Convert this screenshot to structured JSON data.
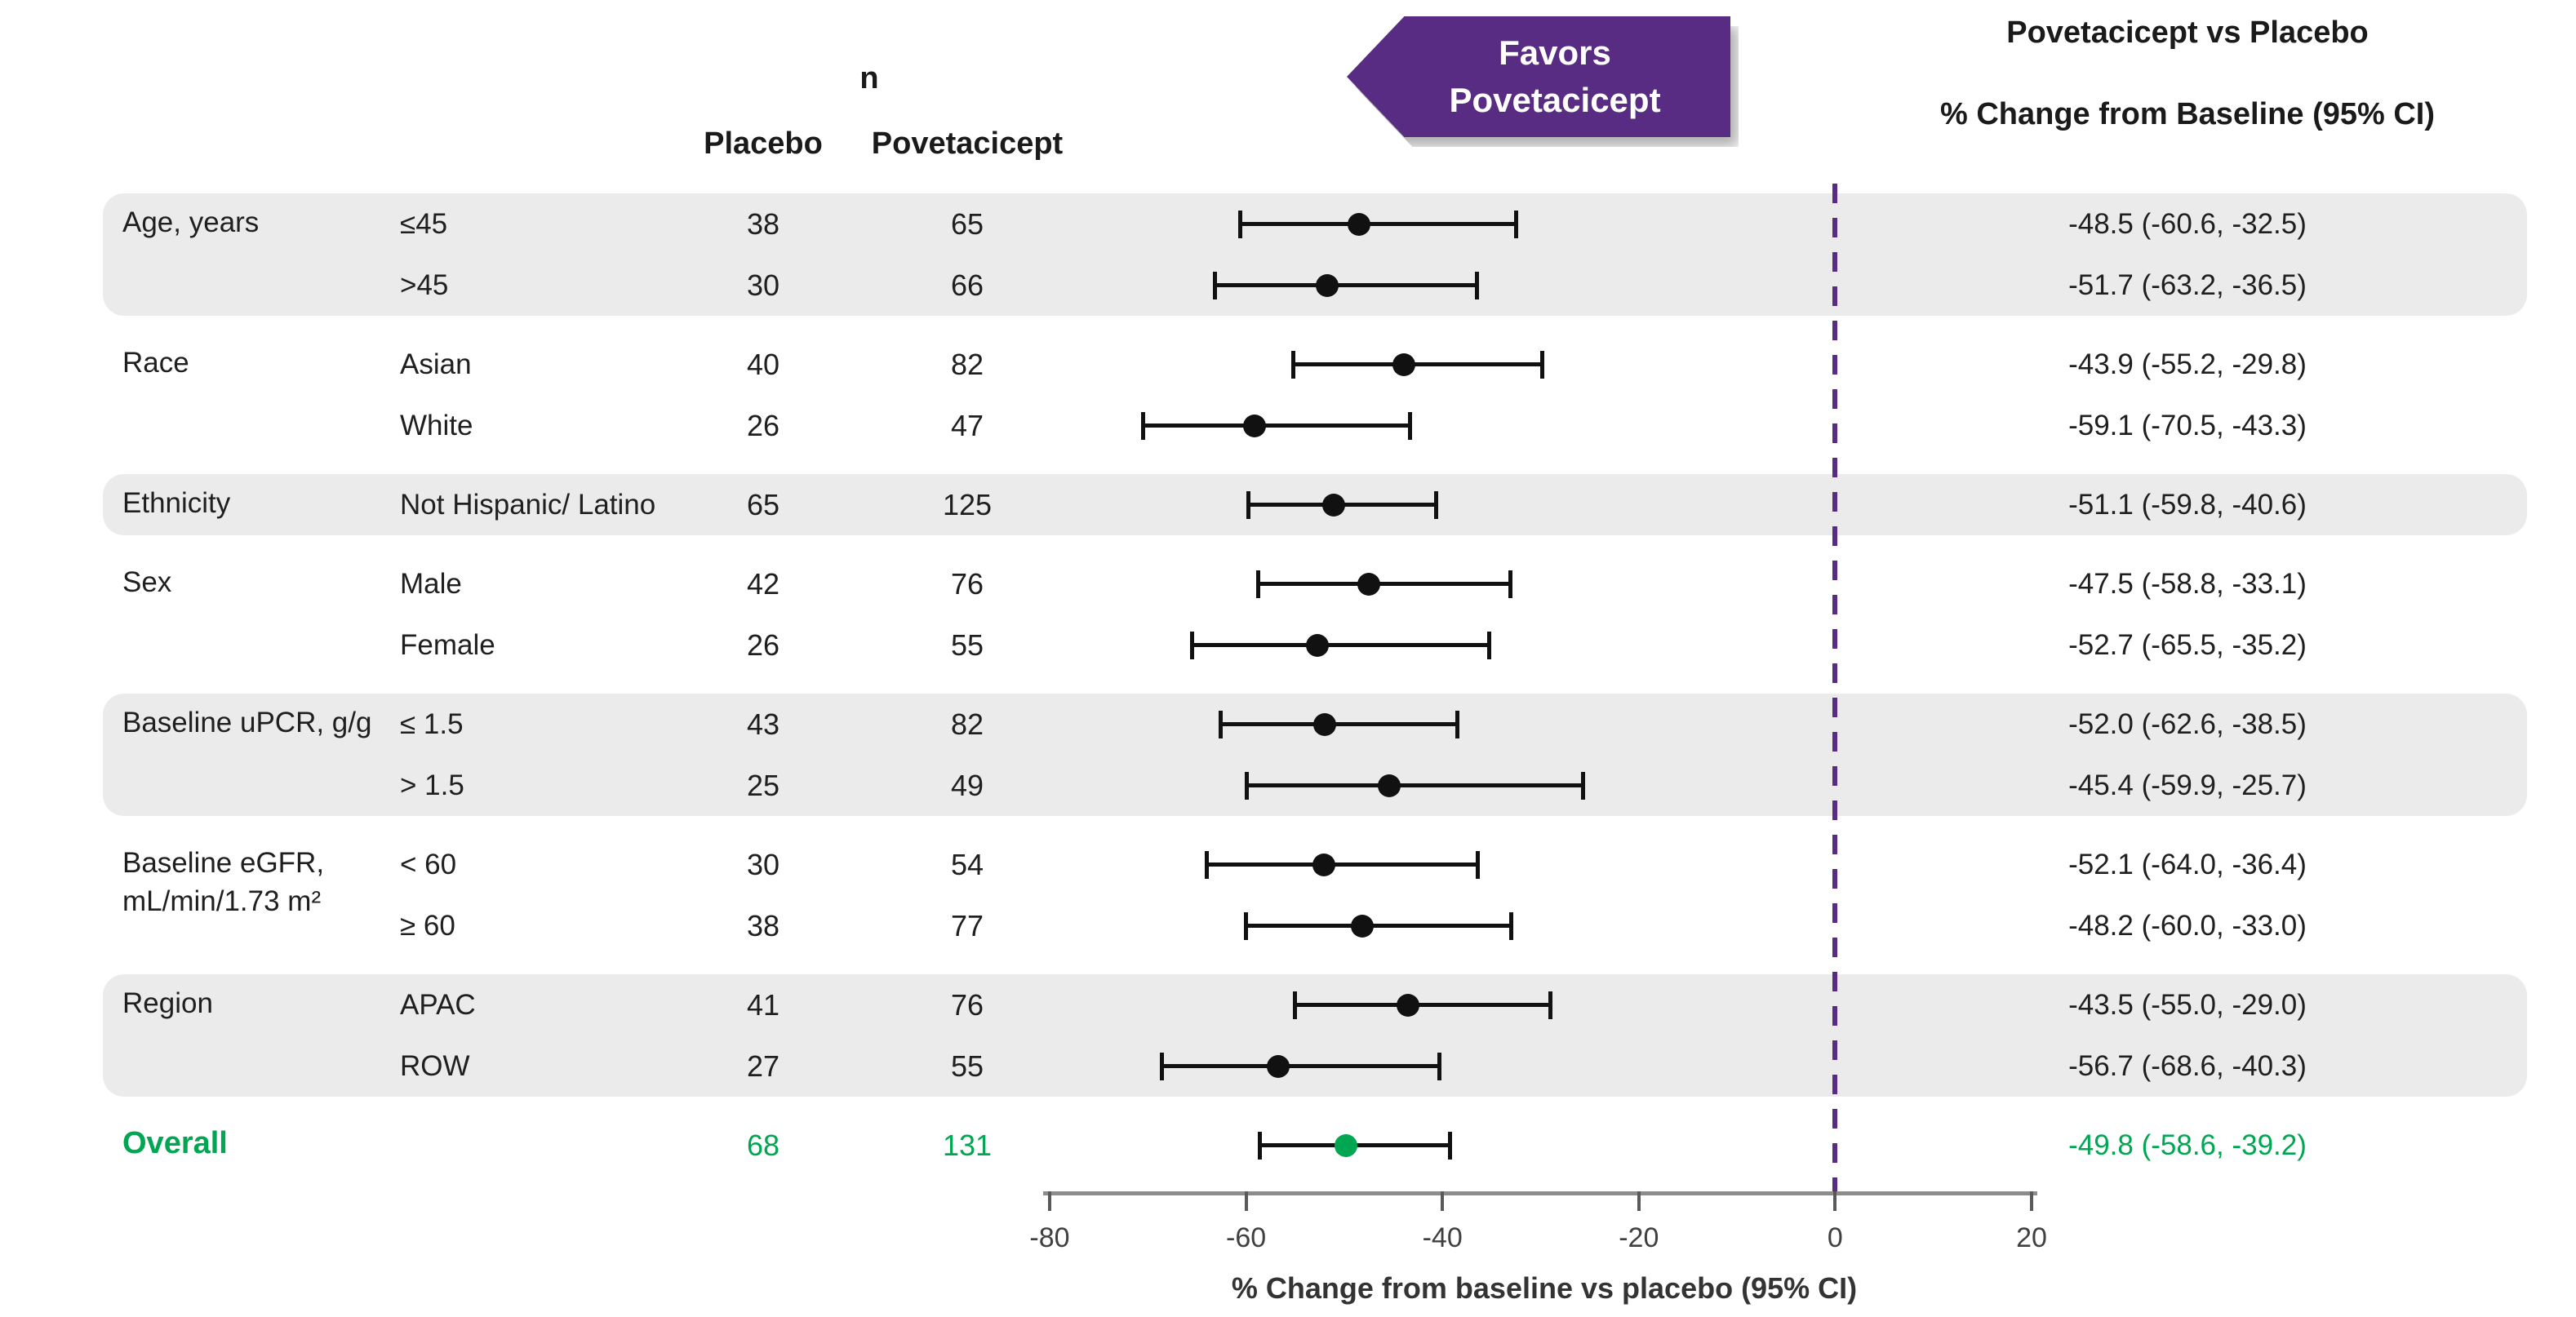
{
  "header": {
    "n_label": "n",
    "placebo_label": "Placebo",
    "povetacicept_label": "Povetacicept",
    "favors_line1": "Favors",
    "favors_line2": "Povetacicept",
    "right_title_line1": "Povetacicept vs Placebo",
    "right_title_line2": "% Change from Baseline (95% CI)"
  },
  "colors": {
    "accent_purple": "#582C83",
    "overall_green": "#00A651",
    "band_gray": "#EBEBEB",
    "marker_black": "#111111"
  },
  "axis": {
    "label": "% Change from baseline vs placebo (95% CI)",
    "min": -80,
    "max": 20,
    "ticks": [
      -80,
      -60,
      -40,
      -20,
      0,
      20
    ],
    "reference_line_x": 0
  },
  "groups": [
    {
      "category": "Age, years",
      "shaded": true,
      "overall": false,
      "rows": [
        {
          "subgroup": "≤45",
          "placebo_n": "38",
          "povetacicept_n": "65",
          "estimate": -48.5,
          "lower": -60.6,
          "upper": -32.5,
          "ci_text": "-48.5 (-60.6, -32.5)"
        },
        {
          "subgroup": ">45",
          "placebo_n": "30",
          "povetacicept_n": "66",
          "estimate": -51.7,
          "lower": -63.2,
          "upper": -36.5,
          "ci_text": "-51.7 (-63.2, -36.5)"
        }
      ]
    },
    {
      "category": "Race",
      "shaded": false,
      "overall": false,
      "rows": [
        {
          "subgroup": "Asian",
          "placebo_n": "40",
          "povetacicept_n": "82",
          "estimate": -43.9,
          "lower": -55.2,
          "upper": -29.8,
          "ci_text": "-43.9 (-55.2, -29.8)"
        },
        {
          "subgroup": "White",
          "placebo_n": "26",
          "povetacicept_n": "47",
          "estimate": -59.1,
          "lower": -70.5,
          "upper": -43.3,
          "ci_text": "-59.1 (-70.5, -43.3)"
        }
      ]
    },
    {
      "category": "Ethnicity",
      "shaded": true,
      "overall": false,
      "rows": [
        {
          "subgroup": "Not Hispanic/ Latino",
          "placebo_n": "65",
          "povetacicept_n": "125",
          "estimate": -51.1,
          "lower": -59.8,
          "upper": -40.6,
          "ci_text": "-51.1 (-59.8, -40.6)"
        }
      ]
    },
    {
      "category": "Sex",
      "shaded": false,
      "overall": false,
      "rows": [
        {
          "subgroup": "Male",
          "placebo_n": "42",
          "povetacicept_n": "76",
          "estimate": -47.5,
          "lower": -58.8,
          "upper": -33.1,
          "ci_text": "-47.5 (-58.8, -33.1)"
        },
        {
          "subgroup": "Female",
          "placebo_n": "26",
          "povetacicept_n": "55",
          "estimate": -52.7,
          "lower": -65.5,
          "upper": -35.2,
          "ci_text": "-52.7 (-65.5, -35.2)"
        }
      ]
    },
    {
      "category": "Baseline uPCR, g/g",
      "shaded": true,
      "overall": false,
      "rows": [
        {
          "subgroup": "≤ 1.5",
          "placebo_n": "43",
          "povetacicept_n": "82",
          "estimate": -52.0,
          "lower": -62.6,
          "upper": -38.5,
          "ci_text": "-52.0 (-62.6, -38.5)"
        },
        {
          "subgroup": "> 1.5",
          "placebo_n": "25",
          "povetacicept_n": "49",
          "estimate": -45.4,
          "lower": -59.9,
          "upper": -25.7,
          "ci_text": "-45.4 (-59.9, -25.7)"
        }
      ]
    },
    {
      "category": "Baseline eGFR, mL/min/1.73 m²",
      "shaded": false,
      "overall": false,
      "rows": [
        {
          "subgroup": "< 60",
          "placebo_n": "30",
          "povetacicept_n": "54",
          "estimate": -52.1,
          "lower": -64.0,
          "upper": -36.4,
          "ci_text": "-52.1 (-64.0, -36.4)"
        },
        {
          "subgroup": "≥ 60",
          "placebo_n": "38",
          "povetacicept_n": "77",
          "estimate": -48.2,
          "lower": -60.0,
          "upper": -33.0,
          "ci_text": "-48.2 (-60.0, -33.0)"
        }
      ]
    },
    {
      "category": "Region",
      "shaded": true,
      "overall": false,
      "rows": [
        {
          "subgroup": "APAC",
          "placebo_n": "41",
          "povetacicept_n": "76",
          "estimate": -43.5,
          "lower": -55.0,
          "upper": -29.0,
          "ci_text": "-43.5 (-55.0, -29.0)"
        },
        {
          "subgroup": "ROW",
          "placebo_n": "27",
          "povetacicept_n": "55",
          "estimate": -56.7,
          "lower": -68.6,
          "upper": -40.3,
          "ci_text": "-56.7 (-68.6, -40.3)"
        }
      ]
    },
    {
      "category": "Overall",
      "shaded": false,
      "overall": true,
      "rows": [
        {
          "subgroup": "",
          "placebo_n": "68",
          "povetacicept_n": "131",
          "estimate": -49.8,
          "lower": -58.6,
          "upper": -39.2,
          "ci_text": "-49.8 (-58.6, -39.2)"
        }
      ]
    }
  ],
  "chart_data": {
    "type": "scatter",
    "subtype": "forest-plot",
    "title": "Povetacicept vs Placebo % Change from Baseline (95% CI)",
    "xlabel": "% Change from baseline vs placebo (95% CI)",
    "ylabel": "",
    "xlim": [
      -80,
      20
    ],
    "x_ticks": [
      -80,
      -60,
      -40,
      -20,
      0,
      20
    ],
    "reference_line_x": 0,
    "grid": false,
    "legend_position": "none",
    "points": [
      {
        "label": "Age, years ≤45",
        "placebo_n": 38,
        "povetacicept_n": 65,
        "estimate": -48.5,
        "ci_lower": -60.6,
        "ci_upper": -32.5
      },
      {
        "label": "Age, years >45",
        "placebo_n": 30,
        "povetacicept_n": 66,
        "estimate": -51.7,
        "ci_lower": -63.2,
        "ci_upper": -36.5
      },
      {
        "label": "Race Asian",
        "placebo_n": 40,
        "povetacicept_n": 82,
        "estimate": -43.9,
        "ci_lower": -55.2,
        "ci_upper": -29.8
      },
      {
        "label": "Race White",
        "placebo_n": 26,
        "povetacicept_n": 47,
        "estimate": -59.1,
        "ci_lower": -70.5,
        "ci_upper": -43.3
      },
      {
        "label": "Ethnicity Not Hispanic/ Latino",
        "placebo_n": 65,
        "povetacicept_n": 125,
        "estimate": -51.1,
        "ci_lower": -59.8,
        "ci_upper": -40.6
      },
      {
        "label": "Sex Male",
        "placebo_n": 42,
        "povetacicept_n": 76,
        "estimate": -47.5,
        "ci_lower": -58.8,
        "ci_upper": -33.1
      },
      {
        "label": "Sex Female",
        "placebo_n": 26,
        "povetacicept_n": 55,
        "estimate": -52.7,
        "ci_lower": -65.5,
        "ci_upper": -35.2
      },
      {
        "label": "Baseline uPCR, g/g ≤ 1.5",
        "placebo_n": 43,
        "povetacicept_n": 82,
        "estimate": -52.0,
        "ci_lower": -62.6,
        "ci_upper": -38.5
      },
      {
        "label": "Baseline uPCR, g/g > 1.5",
        "placebo_n": 25,
        "povetacicept_n": 49,
        "estimate": -45.4,
        "ci_lower": -59.9,
        "ci_upper": -25.7
      },
      {
        "label": "Baseline eGFR, mL/min/1.73 m² < 60",
        "placebo_n": 30,
        "povetacicept_n": 54,
        "estimate": -52.1,
        "ci_lower": -64.0,
        "ci_upper": -36.4
      },
      {
        "label": "Baseline eGFR, mL/min/1.73 m² ≥ 60",
        "placebo_n": 38,
        "povetacicept_n": 77,
        "estimate": -48.2,
        "ci_lower": -60.0,
        "ci_upper": -33.0
      },
      {
        "label": "Region APAC",
        "placebo_n": 41,
        "povetacicept_n": 76,
        "estimate": -43.5,
        "ci_lower": -55.0,
        "ci_upper": -29.0
      },
      {
        "label": "Region ROW",
        "placebo_n": 27,
        "povetacicept_n": 55,
        "estimate": -56.7,
        "ci_lower": -68.6,
        "ci_upper": -40.3
      },
      {
        "label": "Overall",
        "placebo_n": 68,
        "povetacicept_n": 131,
        "estimate": -49.8,
        "ci_lower": -58.6,
        "ci_upper": -39.2
      }
    ]
  }
}
